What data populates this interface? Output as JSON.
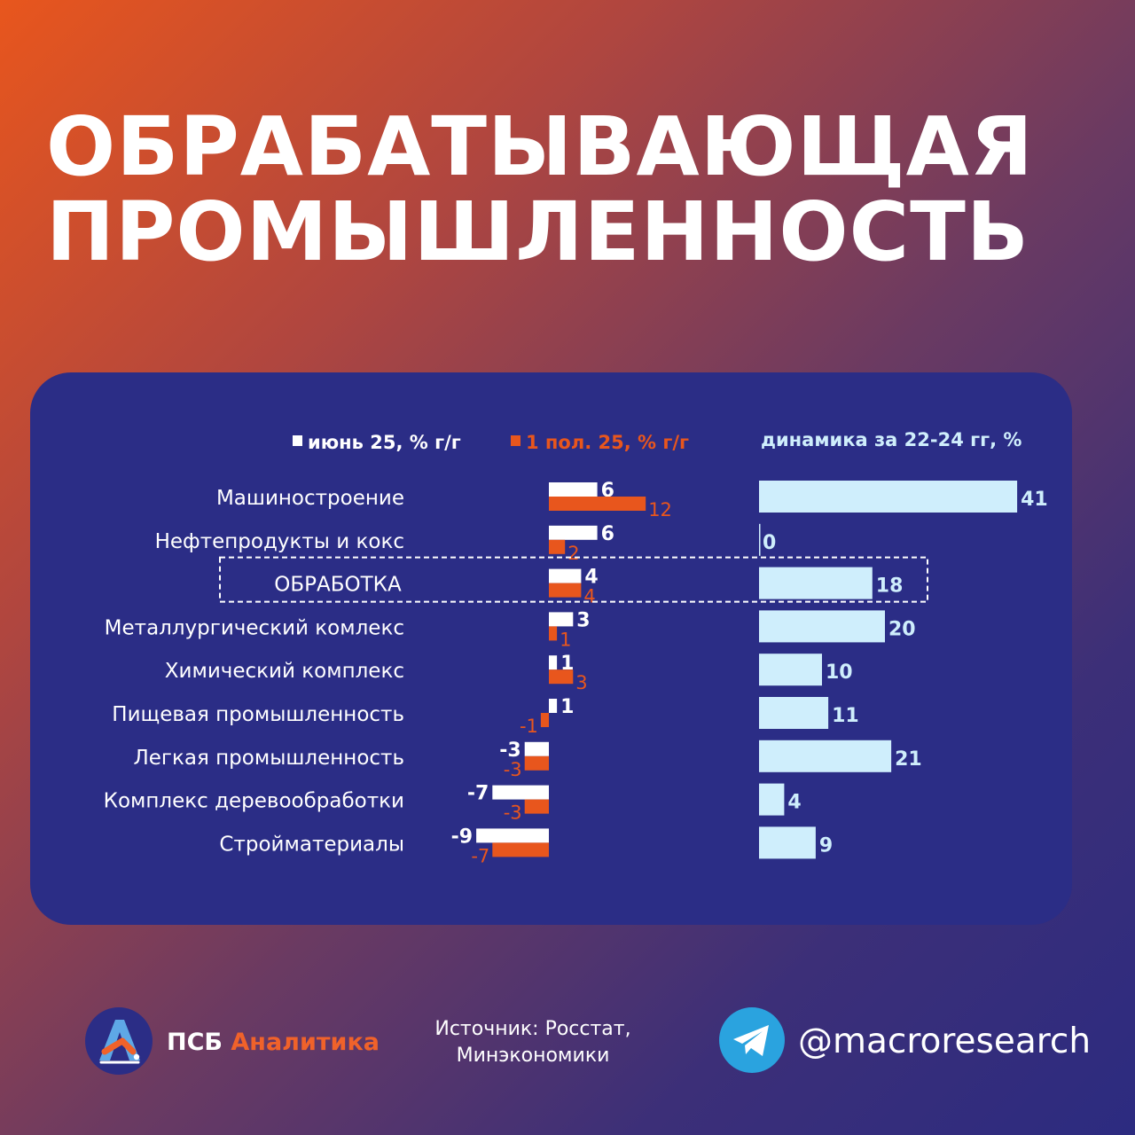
{
  "headline": {
    "line1": "ОБРАБАТЫВАЮЩАЯ",
    "line2": "ПРОМЫШЛЕННОСТЬ"
  },
  "colors": {
    "june": "#ffffff",
    "h1": "#e8561d",
    "dyn": "#cfeefc",
    "panel": "#2b2d86",
    "brand_accent": "#f0622a",
    "telegram": "#2aa3df"
  },
  "chart_data": {
    "type": "bar",
    "categories": [
      "Машиностроение",
      "Нефтепродукты и кокс",
      "ОБРАБОТКА",
      "Металлургический комлекс",
      "Химический комплекс",
      "Пищевая промышленность",
      "Легкая промышленность",
      "Комплекс деревообработки",
      "Стройматериалы"
    ],
    "highlight_category": "ОБРАБОТКА",
    "series": [
      {
        "name": "июнь 25, % г/г",
        "values": [
          6,
          6,
          4,
          3,
          1,
          1,
          -3,
          -7,
          -9
        ]
      },
      {
        "name": "1 пол. 25, % г/г",
        "values": [
          12,
          2,
          4,
          1,
          3,
          -1,
          -3,
          -3,
          -7
        ]
      }
    ],
    "dynamics": {
      "name": "динамика за 22-24 гг, %",
      "values": [
        41,
        0,
        18,
        20,
        10,
        11,
        21,
        4,
        9
      ]
    }
  },
  "footer": {
    "brand_main": "ПСБ ",
    "brand_accent": "Аналитика",
    "source_line1": "Источник: Росстат,",
    "source_line2": "Минэкономики",
    "handle": "@macroresearch",
    "logo_icon": "psb-analytics-logo-icon",
    "telegram_icon": "telegram-icon"
  }
}
